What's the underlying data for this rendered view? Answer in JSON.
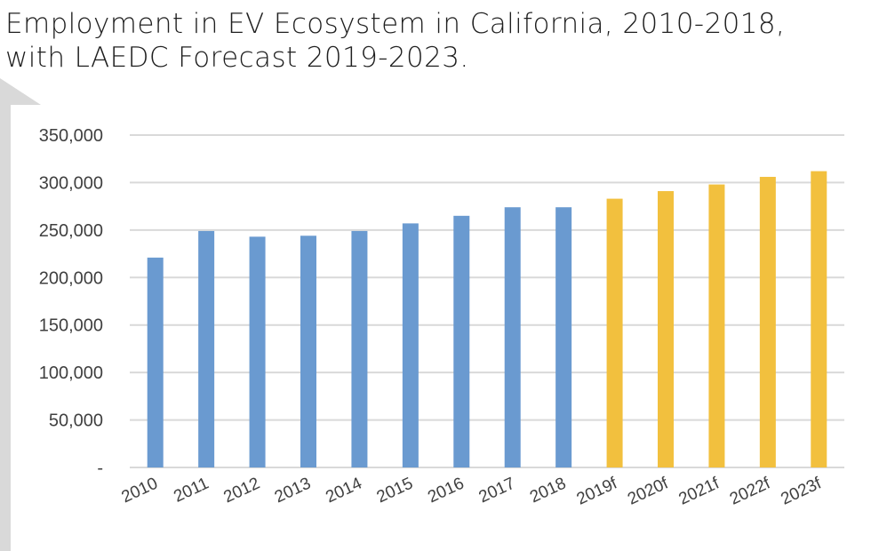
{
  "title": {
    "line1": "Employment in EV Ecosystem in California, 2010-2018,",
    "line2": "with LAEDC Forecast 2019-2023."
  },
  "colors": {
    "actual": "#6a9ad0",
    "forecast": "#f2c03e",
    "grid": "#d9d9d9",
    "decoration": "#d9d9d9"
  },
  "chart_data": {
    "type": "bar",
    "title": "Employment in EV Ecosystem in California, 2010-2018, with LAEDC Forecast 2019-2023.",
    "categories": [
      "2010",
      "2011",
      "2012",
      "2013",
      "2014",
      "2015",
      "2016",
      "2017",
      "2018",
      "2019f",
      "2020f",
      "2021f",
      "2022f",
      "2023f"
    ],
    "values": [
      221000,
      249000,
      243000,
      244000,
      249000,
      257000,
      265000,
      274000,
      274000,
      283000,
      291000,
      298000,
      306000,
      312000
    ],
    "forecast_start_index": 9,
    "ylim": [
      0,
      350000
    ],
    "yticks": [
      0,
      50000,
      100000,
      150000,
      200000,
      250000,
      300000,
      350000
    ],
    "ytick_labels": [
      "-",
      "50,000",
      "100,000",
      "150,000",
      "200,000",
      "250,000",
      "300,000",
      "350,000"
    ],
    "grid": true,
    "legend": "none"
  }
}
